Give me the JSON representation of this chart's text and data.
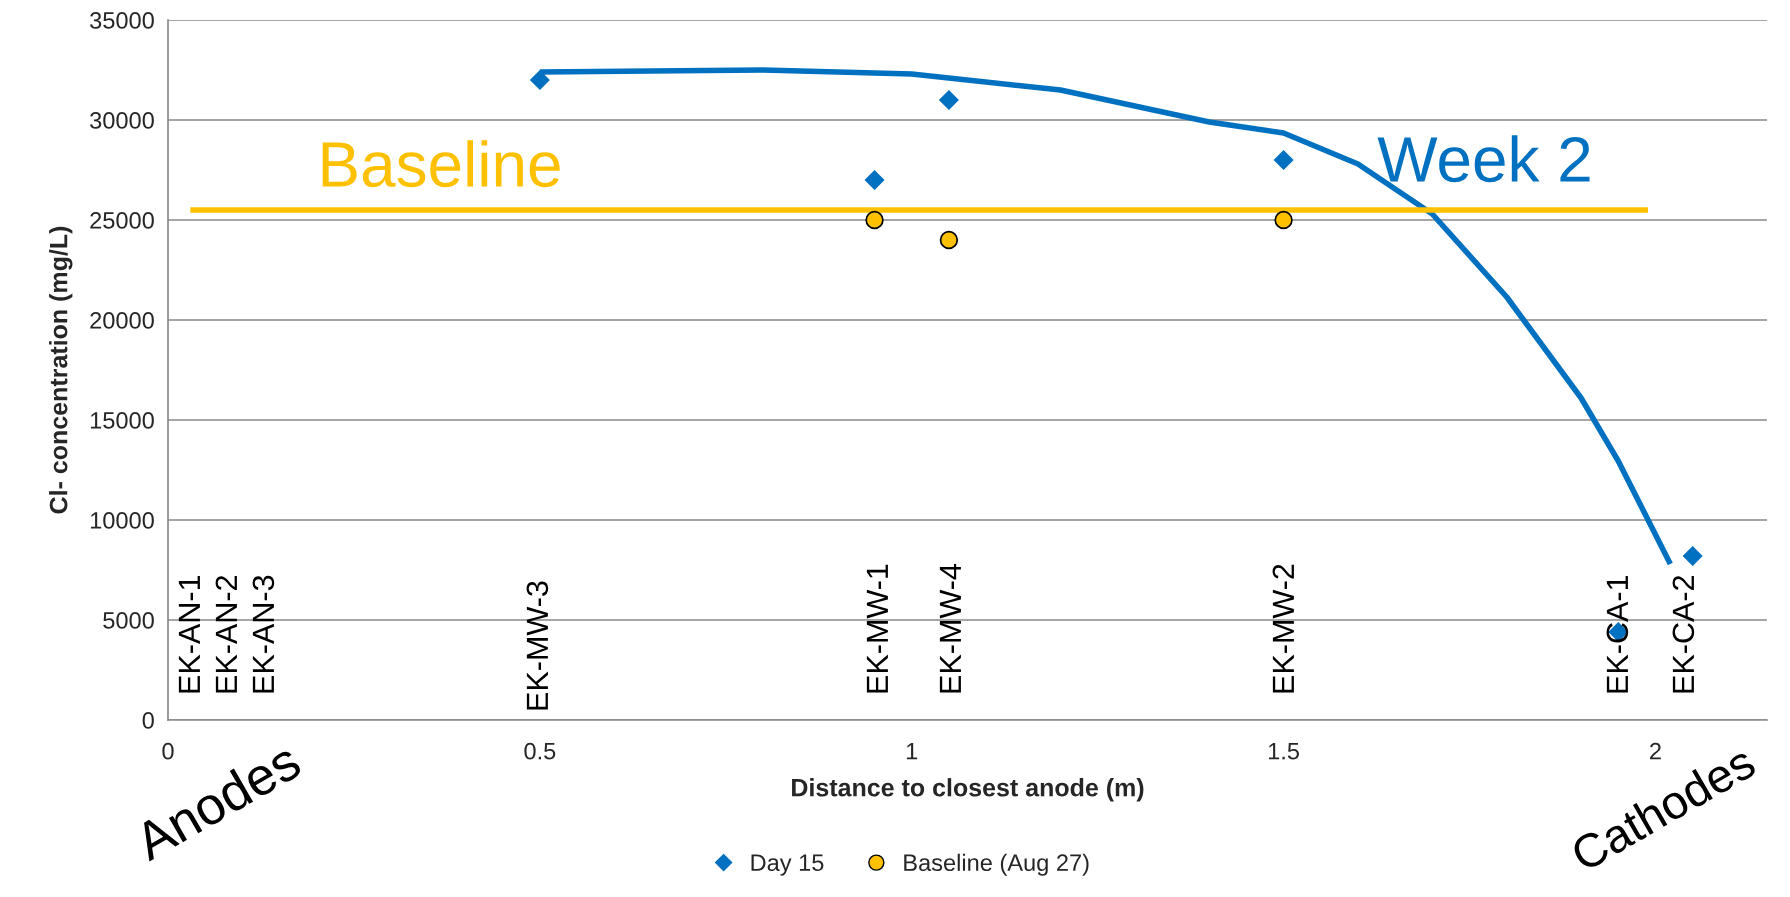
{
  "chart_data": {
    "type": "scatter",
    "xlabel": "Distance to closest anode (m)",
    "ylabel": "Cl- concentration (mg/L)",
    "xlim": [
      0,
      2.15
    ],
    "xticks": [
      0,
      0.5,
      1,
      1.5,
      2
    ],
    "ylim": [
      0,
      35000
    ],
    "yticks": [
      0,
      5000,
      10000,
      15000,
      20000,
      25000,
      30000,
      35000
    ],
    "grid": "y",
    "legend": "bottom",
    "series": [
      {
        "name": "Day 15",
        "color": "#0070c0",
        "marker": "diamond",
        "x": [
          0.5,
          0.95,
          1.05,
          1.5,
          1.95,
          2.05
        ],
        "values": [
          32000,
          27000,
          31000,
          28000,
          4400,
          8200
        ]
      },
      {
        "name": "Baseline (Aug 27)",
        "color": "#ffc000",
        "marker": "circle",
        "x": [
          0.95,
          1.05,
          1.5
        ],
        "values": [
          25000,
          24000,
          25000
        ]
      },
      {
        "type": "line",
        "color": "#0070c0",
        "marker": "none",
        "x": [
          0.5,
          0.8,
          1.0,
          1.2,
          1.4,
          1.5,
          1.6,
          1.7,
          1.8,
          1.9,
          1.95,
          2.02
        ],
        "values": [
          32400,
          32500,
          32300,
          31500,
          29900,
          29350,
          27800,
          25300,
          21150,
          16100,
          12950,
          7800
        ]
      },
      {
        "type": "line",
        "color": "#ffc000",
        "marker": "none",
        "x": [
          0.03,
          1.99
        ],
        "values": [
          25500,
          25500
        ]
      }
    ],
    "annotations": [
      "Baseline",
      "Week 2",
      "EK-AN-1",
      "EK-AN-2",
      "EK-AN-3",
      "EK-MW-3",
      "EK-MW-1",
      "EK-MW-4",
      "EK-MW-2",
      "EK-CA-1",
      "EK-CA-2",
      "Anodes",
      "Cathodes"
    ]
  }
}
